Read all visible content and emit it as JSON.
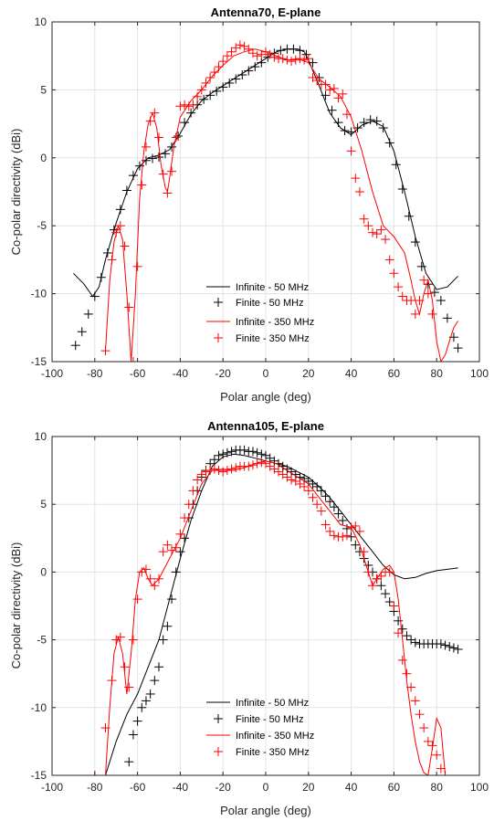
{
  "colors": {
    "black": "#000000",
    "red": "#ff0000",
    "grid": "#e3e3e3",
    "axis": "#262626"
  },
  "chart_data": [
    {
      "type": "line",
      "title": "Antenna70, E-plane",
      "xlabel": "Polar angle (deg)",
      "ylabel": "Co-polar directivity (dBi)",
      "xlim": [
        -100,
        100
      ],
      "ylim": [
        -15,
        10
      ],
      "xticks": [
        "-100",
        "-80",
        "-60",
        "-40",
        "-20",
        "0",
        "20",
        "40",
        "60",
        "80",
        "100"
      ],
      "yticks": [
        "-15",
        "-10",
        "-5",
        "0",
        "5",
        "10"
      ],
      "grid": true,
      "legend_position": "bottom-center",
      "series": [
        {
          "name": "Infinite - 50 MHz",
          "style": "line",
          "color": "#000000",
          "x": [
            -90,
            -85,
            -81,
            -78,
            -75,
            -70,
            -65,
            -60,
            -55,
            -50,
            -45,
            -40,
            -35,
            -30,
            -25,
            -20,
            -15,
            -10,
            -5,
            0,
            5,
            10,
            15,
            18,
            20,
            25,
            30,
            35,
            40,
            45,
            50,
            55,
            60,
            65,
            70,
            75,
            80,
            85,
            90
          ],
          "y": [
            -8.5,
            -9.3,
            -10.2,
            -9.5,
            -7.5,
            -4.8,
            -2.5,
            -0.8,
            0,
            0.2,
            0.6,
            1.8,
            3.2,
            4.2,
            4.8,
            5.3,
            5.8,
            6.3,
            6.8,
            7.3,
            7.8,
            8.0,
            8.0,
            7.8,
            7.2,
            5.3,
            3.3,
            2.2,
            1.7,
            2.4,
            2.7,
            2.3,
            0.5,
            -2.5,
            -5.8,
            -8.5,
            -9.7,
            -9.5,
            -8.7
          ]
        },
        {
          "name": "Finite - 50 MHz",
          "style": "marker",
          "color": "#000000",
          "x": [
            -89,
            -86,
            -83,
            -80,
            -77,
            -74,
            -71,
            -68,
            -65,
            -62,
            -59,
            -56,
            -53,
            -50,
            -47,
            -44,
            -41,
            -38,
            -35,
            -32,
            -29,
            -26,
            -23,
            -20,
            -17,
            -14,
            -11,
            -8,
            -5,
            -2,
            1,
            4,
            7,
            10,
            13,
            16,
            19,
            22,
            25,
            28,
            31,
            34,
            37,
            40,
            43,
            46,
            49,
            52,
            55,
            58,
            61,
            64,
            67,
            70,
            73,
            76,
            79,
            82,
            85,
            88,
            90
          ],
          "y": [
            -13.8,
            -12.8,
            -11.5,
            -10.2,
            -8.8,
            -7.0,
            -5.3,
            -3.8,
            -2.4,
            -1.3,
            -0.6,
            -0.2,
            -0.05,
            0.05,
            0.3,
            0.8,
            1.6,
            2.6,
            3.3,
            3.9,
            4.3,
            4.6,
            4.9,
            5.2,
            5.5,
            5.8,
            6.1,
            6.4,
            6.7,
            7.0,
            7.4,
            7.7,
            7.9,
            8.0,
            8.0,
            7.9,
            7.6,
            7.0,
            5.9,
            4.6,
            3.5,
            2.6,
            2.0,
            1.9,
            2.2,
            2.6,
            2.8,
            2.7,
            2.2,
            1.1,
            -0.5,
            -2.3,
            -4.3,
            -6.2,
            -8.0,
            -9.3,
            -9.9,
            -10.5,
            -11.8,
            -13.2,
            -14.0
          ]
        },
        {
          "name": "Infinite - 350 MHz",
          "style": "line",
          "color": "#ff0000",
          "x": [
            -75,
            -73,
            -71,
            -69,
            -67,
            -65,
            -63,
            -61,
            -59,
            -57,
            -55,
            -53,
            -51,
            -49,
            -47,
            -46,
            -45,
            -43,
            -40,
            -35,
            -30,
            -25,
            -20,
            -15,
            -10,
            -5,
            0,
            5,
            10,
            15,
            20,
            25,
            30,
            35,
            40,
            45,
            50,
            55,
            60,
            65,
            68,
            70,
            72,
            74,
            76,
            78,
            80,
            82,
            84,
            86,
            88,
            90
          ],
          "y": [
            -14.2,
            -9.0,
            -6.2,
            -5.0,
            -6.0,
            -10.0,
            -15.0,
            -10.0,
            -3.0,
            0.5,
            2.5,
            3.3,
            2.2,
            -0.5,
            -2.2,
            -2.5,
            -1.5,
            0.8,
            3.0,
            4.2,
            5.0,
            6.0,
            6.8,
            7.5,
            7.8,
            8.0,
            7.8,
            7.5,
            7.2,
            7.3,
            7.0,
            5.8,
            5.2,
            4.5,
            3.0,
            0.5,
            -2.5,
            -5.0,
            -5.8,
            -7.0,
            -9.0,
            -10.5,
            -11.5,
            -10.0,
            -9.0,
            -10.5,
            -13.5,
            -15.0,
            -14.5,
            -13.5,
            -12.5,
            -12.0
          ]
        },
        {
          "name": "Finite - 350 MHz",
          "style": "marker",
          "color": "#ff0000",
          "x": [
            -75,
            -72,
            -70,
            -68,
            -66,
            -64,
            -62,
            -60,
            -58,
            -56,
            -54,
            -52,
            -50,
            -48,
            -46,
            -44,
            -42,
            -40,
            -38,
            -36,
            -34,
            -32,
            -30,
            -28,
            -26,
            -24,
            -22,
            -20,
            -18,
            -16,
            -14,
            -12,
            -10,
            -8,
            -6,
            -4,
            -2,
            0,
            2,
            4,
            6,
            8,
            10,
            12,
            14,
            16,
            18,
            20,
            22,
            24,
            26,
            28,
            30,
            32,
            34,
            36,
            38,
            40,
            42,
            44,
            46,
            48,
            50,
            52,
            54,
            56,
            58,
            60,
            62,
            64,
            66,
            68,
            70,
            72,
            74,
            76,
            78
          ],
          "y": [
            -14.2,
            -7.5,
            -5.5,
            -5.0,
            -6.5,
            -11.0,
            -15.0,
            -8.0,
            -2.0,
            0.8,
            2.7,
            3.3,
            1.5,
            -1.2,
            -2.6,
            -1.0,
            1.5,
            3.8,
            3.9,
            3.8,
            3.9,
            4.5,
            5.0,
            5.5,
            5.9,
            6.3,
            6.7,
            7.1,
            7.5,
            7.8,
            8.1,
            8.3,
            8.2,
            8.0,
            7.7,
            7.5,
            7.6,
            7.8,
            7.6,
            7.4,
            7.3,
            7.3,
            7.2,
            7.1,
            7.2,
            7.3,
            7.2,
            7.3,
            5.9,
            5.7,
            5.4,
            5.4,
            5.0,
            5.1,
            4.4,
            4.7,
            3.2,
            0.5,
            -1.5,
            -2.5,
            -4.5,
            -5.0,
            -5.5,
            -5.6,
            -5.3,
            -6.0,
            -7.5,
            -8.5,
            -9.5,
            -10.2,
            -10.5,
            -10.5,
            -11.5,
            -10.5,
            -9.0,
            -10.0,
            -11.5
          ]
        }
      ]
    },
    {
      "type": "line",
      "title": "Antenna105, E-plane",
      "xlabel": "Polar angle (deg)",
      "ylabel": "Co-polar directivity (dBi)",
      "xlim": [
        -100,
        100
      ],
      "ylim": [
        -15,
        10
      ],
      "xticks": [
        "-100",
        "-80",
        "-60",
        "-40",
        "-20",
        "0",
        "20",
        "40",
        "60",
        "80",
        "100"
      ],
      "yticks": [
        "-15",
        "-10",
        "-5",
        "0",
        "5",
        "10"
      ],
      "grid": true,
      "legend_position": "bottom-center",
      "series": [
        {
          "name": "Infinite - 50 MHz",
          "style": "line",
          "color": "#000000",
          "x": [
            -75,
            -70,
            -65,
            -60,
            -55,
            -50,
            -45,
            -40,
            -35,
            -30,
            -25,
            -20,
            -15,
            -10,
            -5,
            0,
            5,
            10,
            15,
            20,
            25,
            30,
            35,
            40,
            45,
            50,
            55,
            60,
            65,
            70,
            75,
            80,
            85,
            90
          ],
          "y": [
            -15.0,
            -12.5,
            -10.5,
            -9.0,
            -7.0,
            -5.0,
            -2.0,
            1.0,
            3.8,
            6.0,
            7.8,
            8.5,
            8.7,
            8.6,
            8.4,
            8.2,
            8.0,
            7.8,
            7.4,
            7.0,
            6.3,
            5.5,
            4.5,
            3.5,
            2.5,
            1.5,
            0.5,
            -0.2,
            -0.5,
            -0.4,
            -0.1,
            0.1,
            0.2,
            0.3
          ]
        },
        {
          "name": "Finite - 50 MHz",
          "style": "marker",
          "color": "#000000",
          "x": [
            -64,
            -62,
            -60,
            -58,
            -56,
            -54,
            -52,
            -50,
            -48,
            -46,
            -44,
            -42,
            -40,
            -38,
            -36,
            -34,
            -32,
            -30,
            -28,
            -26,
            -24,
            -22,
            -20,
            -18,
            -16,
            -14,
            -12,
            -10,
            -8,
            -6,
            -4,
            -2,
            0,
            2,
            4,
            6,
            8,
            10,
            12,
            14,
            16,
            18,
            20,
            22,
            24,
            26,
            28,
            30,
            32,
            34,
            36,
            38,
            40,
            42,
            44,
            46,
            48,
            50,
            52,
            54,
            56,
            58,
            60,
            62,
            64,
            66,
            68,
            70,
            72,
            74,
            76,
            78,
            80,
            82,
            84,
            86,
            88,
            90
          ],
          "y": [
            -14.0,
            -12.0,
            -11.0,
            -10.0,
            -9.5,
            -9.0,
            -8.0,
            -7.0,
            -5.0,
            -4.0,
            -2.0,
            0.0,
            1.5,
            2.5,
            4.0,
            5.0,
            6.0,
            7.0,
            7.5,
            8.0,
            8.3,
            8.6,
            8.7,
            8.8,
            8.9,
            9.0,
            9.0,
            9.0,
            8.9,
            8.9,
            8.8,
            8.7,
            8.6,
            8.4,
            8.2,
            8.0,
            7.8,
            7.6,
            7.4,
            7.2,
            7.0,
            6.9,
            6.7,
            6.5,
            6.3,
            6.0,
            5.6,
            5.2,
            4.8,
            4.3,
            3.8,
            3.2,
            2.6,
            2.0,
            1.5,
            1.0,
            0.5,
            0.0,
            -0.5,
            -1.0,
            -1.6,
            -2.2,
            -2.9,
            -3.6,
            -4.2,
            -4.7,
            -5.0,
            -5.2,
            -5.3,
            -5.3,
            -5.3,
            -5.3,
            -5.3,
            -5.3,
            -5.4,
            -5.5,
            -5.6,
            -5.7
          ]
        },
        {
          "name": "Infinite - 350 MHz",
          "style": "line",
          "color": "#ff0000",
          "x": [
            -75,
            -73,
            -71,
            -69,
            -67,
            -65,
            -63,
            -61,
            -59,
            -57,
            -55,
            -53,
            -50,
            -45,
            -40,
            -35,
            -30,
            -25,
            -20,
            -15,
            -10,
            -5,
            0,
            5,
            10,
            15,
            20,
            25,
            30,
            35,
            40,
            44,
            48,
            50,
            52,
            55,
            58,
            60,
            62,
            64,
            66,
            68,
            70,
            72,
            74,
            76,
            78,
            80,
            82,
            84,
            86
          ],
          "y": [
            -15.0,
            -10.0,
            -6.0,
            -4.8,
            -6.0,
            -9.0,
            -6.0,
            -2.0,
            0.0,
            0.3,
            -0.5,
            -1.0,
            -0.5,
            1.0,
            2.5,
            4.5,
            6.5,
            7.5,
            7.6,
            7.5,
            7.7,
            8.0,
            8.2,
            8.0,
            7.5,
            7.0,
            6.5,
            5.5,
            4.5,
            3.5,
            3.3,
            2.0,
            0.0,
            -1.0,
            -0.5,
            0.2,
            0.5,
            0.0,
            -2.0,
            -5.0,
            -8.0,
            -10.5,
            -12.5,
            -14.0,
            -14.8,
            -15.0,
            -13.0,
            -10.8,
            -11.5,
            -15.0,
            -15.0
          ]
        },
        {
          "name": "Finite - 350 MHz",
          "style": "marker",
          "color": "#ff0000",
          "x": [
            -80,
            -75,
            -72,
            -70,
            -68,
            -66,
            -64,
            -62,
            -60,
            -58,
            -56,
            -54,
            -52,
            -50,
            -48,
            -46,
            -44,
            -42,
            -40,
            -38,
            -36,
            -34,
            -32,
            -30,
            -28,
            -26,
            -24,
            -22,
            -20,
            -18,
            -16,
            -14,
            -12,
            -10,
            -8,
            -6,
            -4,
            -2,
            0,
            2,
            4,
            6,
            8,
            10,
            12,
            14,
            16,
            18,
            20,
            22,
            24,
            26,
            28,
            30,
            32,
            34,
            36,
            38,
            40,
            42,
            44,
            46,
            48,
            50,
            52,
            54,
            56,
            58,
            60,
            62,
            64,
            66,
            68,
            70,
            72,
            74,
            76,
            78,
            80,
            82,
            84
          ],
          "y": [
            -15.0,
            -11.5,
            -8.0,
            -5.0,
            -4.8,
            -7.0,
            -8.5,
            -5.0,
            -2.0,
            0.0,
            0.2,
            -0.5,
            -1.0,
            -0.5,
            1.5,
            2.0,
            1.6,
            1.8,
            2.8,
            4.0,
            5.0,
            6.0,
            6.8,
            7.2,
            7.4,
            7.5,
            7.6,
            7.5,
            7.4,
            7.5,
            7.6,
            7.7,
            7.8,
            7.8,
            7.8,
            7.9,
            8.0,
            8.1,
            8.0,
            7.8,
            7.6,
            7.4,
            7.2,
            7.0,
            6.8,
            6.7,
            6.5,
            6.3,
            6.0,
            5.5,
            5.0,
            4.5,
            3.5,
            3.0,
            2.7,
            2.6,
            2.6,
            2.7,
            3.3,
            3.4,
            3.0,
            1.5,
            0.0,
            -1.0,
            -0.5,
            -0.3,
            0.0,
            0.0,
            -2.5,
            -4.5,
            -6.5,
            -7.5,
            -8.5,
            -9.5,
            -10.5,
            -11.5,
            -12.5,
            -12.8,
            -13.5,
            -14.5,
            -15.0
          ]
        }
      ]
    }
  ]
}
